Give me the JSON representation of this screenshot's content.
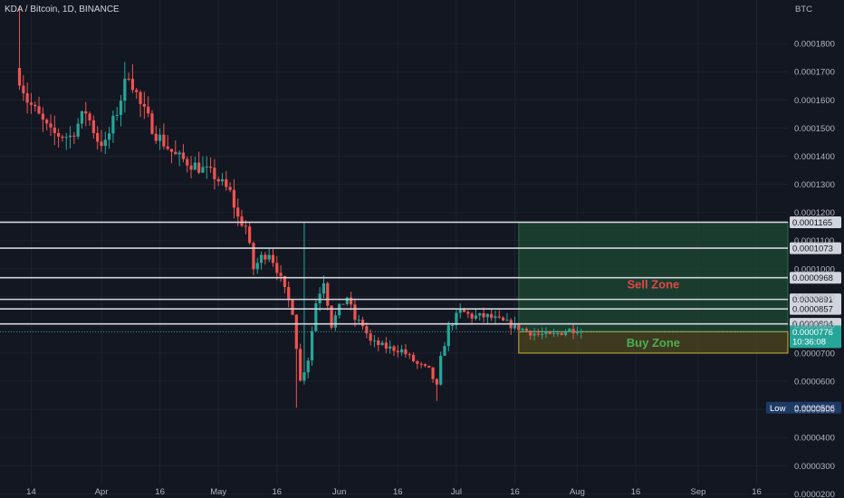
{
  "header": {
    "title": "KDA / Bitcoin, 1D, BINANCE"
  },
  "colors": {
    "background": "#131722",
    "grid": "#1e222d",
    "text": "#b2b5be",
    "up": "#26a69a",
    "down": "#ef5350",
    "level_line": "#d1d4dc",
    "sell_zone_fill": "#1e4a33",
    "sell_zone_text": "#e04848",
    "buy_zone_fill": "#4a4420",
    "buy_zone_border": "#c9b43a",
    "buy_zone_text": "#4caf50",
    "current_price_label": "#26a69a",
    "low_label": "#1e3a66"
  },
  "chart_data": {
    "type": "candlestick",
    "title": "KDA / Bitcoin, 1D, BINANCE",
    "y_unit": "BTC",
    "ylim": [
      1.85e-05,
      0.0001955
    ],
    "y_ticks": [
      "0.0001800",
      "0.0001700",
      "0.0001600",
      "0.0001500",
      "0.0001400",
      "0.0001300",
      "0.0001200",
      "0.0001100",
      "0.0001000",
      "0.0000900",
      "0.0000800",
      "0.0000700",
      "0.0000600",
      "0.0000500",
      "0.0000400",
      "0.0000300",
      "0.0000200"
    ],
    "x_range": [
      "2021-03-06",
      "2021-09-24"
    ],
    "x_ticks": [
      {
        "date": "2021-03-14",
        "label": "14"
      },
      {
        "date": "2021-04-01",
        "label": "Apr"
      },
      {
        "date": "2021-04-16",
        "label": "16"
      },
      {
        "date": "2021-05-01",
        "label": "May"
      },
      {
        "date": "2021-05-16",
        "label": "16"
      },
      {
        "date": "2021-06-01",
        "label": "Jun"
      },
      {
        "date": "2021-06-16",
        "label": "16"
      },
      {
        "date": "2021-07-01",
        "label": "Jul"
      },
      {
        "date": "2021-07-16",
        "label": "16"
      },
      {
        "date": "2021-08-01",
        "label": "Aug"
      },
      {
        "date": "2021-08-16",
        "label": "16"
      },
      {
        "date": "2021-09-01",
        "label": "Sep"
      },
      {
        "date": "2021-09-16",
        "label": "16"
      }
    ],
    "grid": true,
    "first_candle_date": "2021-03-11",
    "price_path": [
      [
        0,
        0.000168
      ],
      [
        2,
        0.00016
      ],
      [
        4,
        0.000156
      ],
      [
        8,
        0.000148
      ],
      [
        13,
        0.000147
      ],
      [
        17,
        0.000156
      ],
      [
        20,
        0.000146
      ],
      [
        22,
        0.000144
      ],
      [
        25,
        0.000156
      ],
      [
        28,
        0.00017
      ],
      [
        31,
        0.000158
      ],
      [
        35,
        0.000148
      ],
      [
        40,
        0.00014
      ],
      [
        46,
        0.000136
      ],
      [
        50,
        0.000133
      ],
      [
        54,
        0.000127
      ],
      [
        56,
        0.000118
      ],
      [
        58,
        0.000115
      ],
      [
        60,
        0.0001
      ],
      [
        62,
        0.000104
      ],
      [
        64,
        0.000106
      ],
      [
        66,
        0.0001
      ],
      [
        68,
        9.2e-05
      ],
      [
        70,
        8.5e-05
      ],
      [
        72,
        6e-05
      ],
      [
        74,
        6.8e-05
      ],
      [
        76,
        8.8e-05
      ],
      [
        78,
        9.6e-05
      ],
      [
        80,
        8e-05
      ],
      [
        82,
        8.6e-05
      ],
      [
        84,
        9e-05
      ],
      [
        86,
        8.2e-05
      ],
      [
        88,
        8e-05
      ],
      [
        90,
        7.4e-05
      ],
      [
        94,
        7.2e-05
      ],
      [
        98,
        7.1e-05
      ],
      [
        102,
        6.6e-05
      ],
      [
        105,
        6.4e-05
      ],
      [
        107,
        5.8e-05
      ],
      [
        108,
        6.8e-05
      ],
      [
        110,
        7.9e-05
      ],
      [
        113,
        8.5e-05
      ],
      [
        116,
        8.3e-05
      ],
      [
        120,
        8.3e-05
      ],
      [
        124,
        8.1e-05
      ],
      [
        128,
        7.9e-05
      ],
      [
        132,
        7.7e-05
      ],
      [
        136,
        7.6e-05
      ],
      [
        140,
        7.8e-05
      ],
      [
        144,
        7.9e-05
      ]
    ],
    "horizontal_levels": [
      "0.0001165",
      "0.0001073",
      "0.0000968",
      "0.0000891",
      "0.0000857",
      "0.0000804"
    ],
    "zones": [
      {
        "name": "Sell Zone",
        "top": 0.0001165,
        "bottom": 7.76e-05,
        "start_date": "2021-07-17"
      },
      {
        "name": "Buy Zone",
        "top": 7.76e-05,
        "bottom": 7e-05,
        "start_date": "2021-07-17"
      }
    ],
    "current_price": {
      "value": "0.0000776",
      "countdown": "10:36:08"
    },
    "low": {
      "label": "Low",
      "value": "0.0000506"
    }
  }
}
